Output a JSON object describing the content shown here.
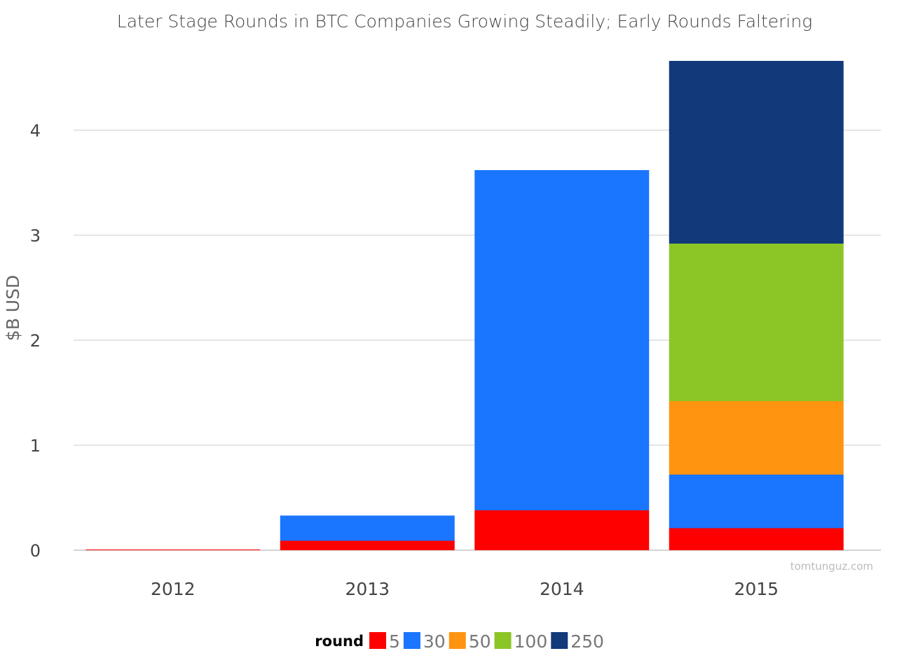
{
  "chart_data": {
    "type": "bar",
    "stacked": true,
    "title": "Later Stage Rounds in BTC Companies Growing Steadily; Early Rounds Faltering",
    "xlabel": "",
    "ylabel": "$B USD",
    "ylim": [
      0,
      4.65
    ],
    "yticks": [
      "0",
      "1",
      "2",
      "3",
      "4"
    ],
    "categories": [
      "2012",
      "2013",
      "2014",
      "2015"
    ],
    "legend_title": "round",
    "legend_position": "bottom",
    "grid": true,
    "series": [
      {
        "name": "5",
        "color": "#ff0000",
        "values": [
          0.003,
          0.09,
          0.38,
          0.21
        ]
      },
      {
        "name": "30",
        "color": "#1a75ff",
        "values": [
          0,
          0.24,
          3.24,
          0.51
        ]
      },
      {
        "name": "50",
        "color": "#ff9410",
        "values": [
          0,
          0,
          0,
          0.7
        ]
      },
      {
        "name": "100",
        "color": "#8bc526",
        "values": [
          0,
          0,
          0,
          1.5
        ]
      },
      {
        "name": "250",
        "color": "#12397a",
        "values": [
          0,
          0,
          0,
          1.74
        ]
      }
    ],
    "watermark": "tomtunguz.com"
  }
}
